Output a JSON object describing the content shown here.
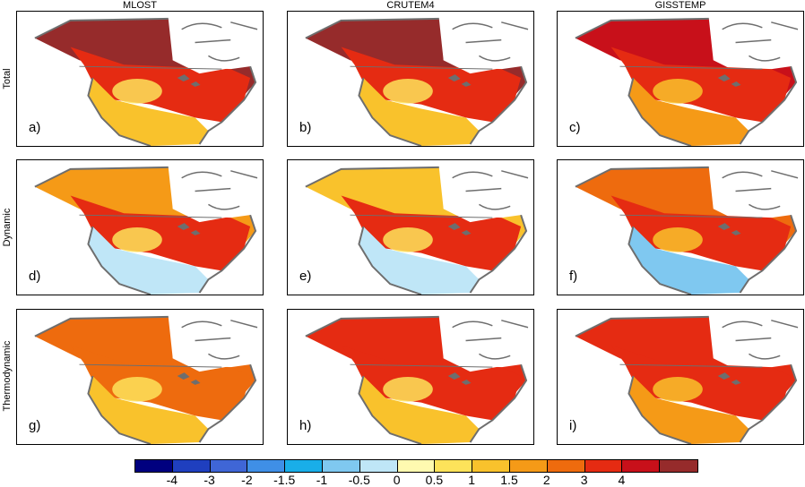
{
  "columns": [
    "MLOST",
    "CRUTEM4",
    "GISSTEMP"
  ],
  "rows": [
    "Total",
    "Dynamic",
    "Thermodynamic"
  ],
  "panels": [
    {
      "label": "a)",
      "column": "MLOST",
      "row": "Total"
    },
    {
      "label": "b)",
      "column": "CRUTEM4",
      "row": "Total"
    },
    {
      "label": "c)",
      "column": "GISSTEMP",
      "row": "Total"
    },
    {
      "label": "d)",
      "column": "MLOST",
      "row": "Dynamic"
    },
    {
      "label": "e)",
      "column": "CRUTEM4",
      "row": "Dynamic"
    },
    {
      "label": "f)",
      "column": "GISSTEMP",
      "row": "Dynamic"
    },
    {
      "label": "g)",
      "column": "MLOST",
      "row": "Thermodynamic"
    },
    {
      "label": "h)",
      "column": "CRUTEM4",
      "row": "Thermodynamic"
    },
    {
      "label": "i)",
      "column": "GISSTEMP",
      "row": "Thermodynamic"
    }
  ],
  "colorbar": {
    "colors": [
      "#00007f",
      "#1f3fbf",
      "#3f66d6",
      "#3f8fe6",
      "#19aee8",
      "#7fc8f0",
      "#bfe6f7",
      "#fffab0",
      "#fde35a",
      "#f9c22c",
      "#f59a17",
      "#ee6b0e",
      "#e52b12",
      "#c8101a",
      "#962b2b"
    ],
    "ticks": [
      "-4",
      "-3",
      "-2",
      "-1.5",
      "-1",
      "-0.5",
      "0",
      "0.5",
      "1",
      "1.5",
      "2",
      "3",
      "4"
    ]
  },
  "palette": {
    "coast": "#6e6e6e",
    "no_data": "#ffffff",
    "ocean": "#ffffff"
  }
}
